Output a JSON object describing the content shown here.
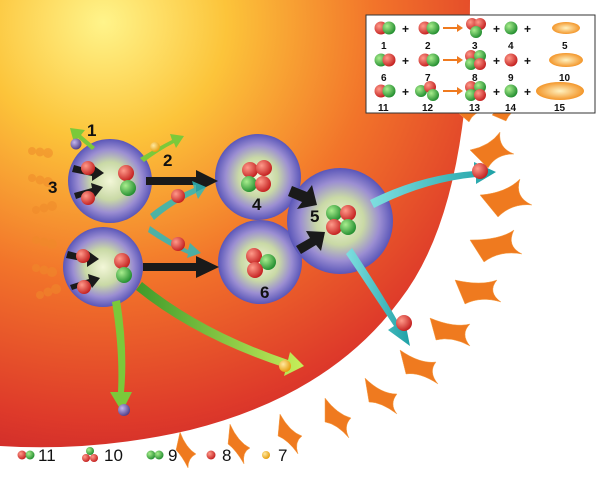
{
  "diagram": {
    "colors": {
      "proton": "#d9362b",
      "neutron": "#2fa83a",
      "positron": "#f2b01c",
      "neutrino": "#6f5aa0",
      "arrow_dark": "#1a1a1a",
      "arrow_green": "#7bc93a",
      "arrow_teal": "#2fb7b8",
      "flare": "#ef7a1f"
    },
    "stage_labels": {
      "n1": "1",
      "n2": "2",
      "n3": "3",
      "n4": "4",
      "n5": "5",
      "n6": "6"
    },
    "key_box": {
      "plus": "+",
      "rows": [
        {
          "items": [
            "1",
            "2",
            "3",
            "4",
            "5"
          ]
        },
        {
          "items": [
            "6",
            "7",
            "8",
            "9",
            "10"
          ]
        },
        {
          "items": [
            "11",
            "12",
            "13",
            "14",
            "15"
          ]
        }
      ]
    },
    "legend": [
      {
        "label": "11",
        "icon": "deuteron-icon"
      },
      {
        "label": "10",
        "icon": "helium3-icon"
      },
      {
        "label": "9",
        "icon": "neutron-pair-icon"
      },
      {
        "label": "8",
        "icon": "proton-icon"
      },
      {
        "label": "7",
        "icon": "positron-icon"
      }
    ]
  }
}
